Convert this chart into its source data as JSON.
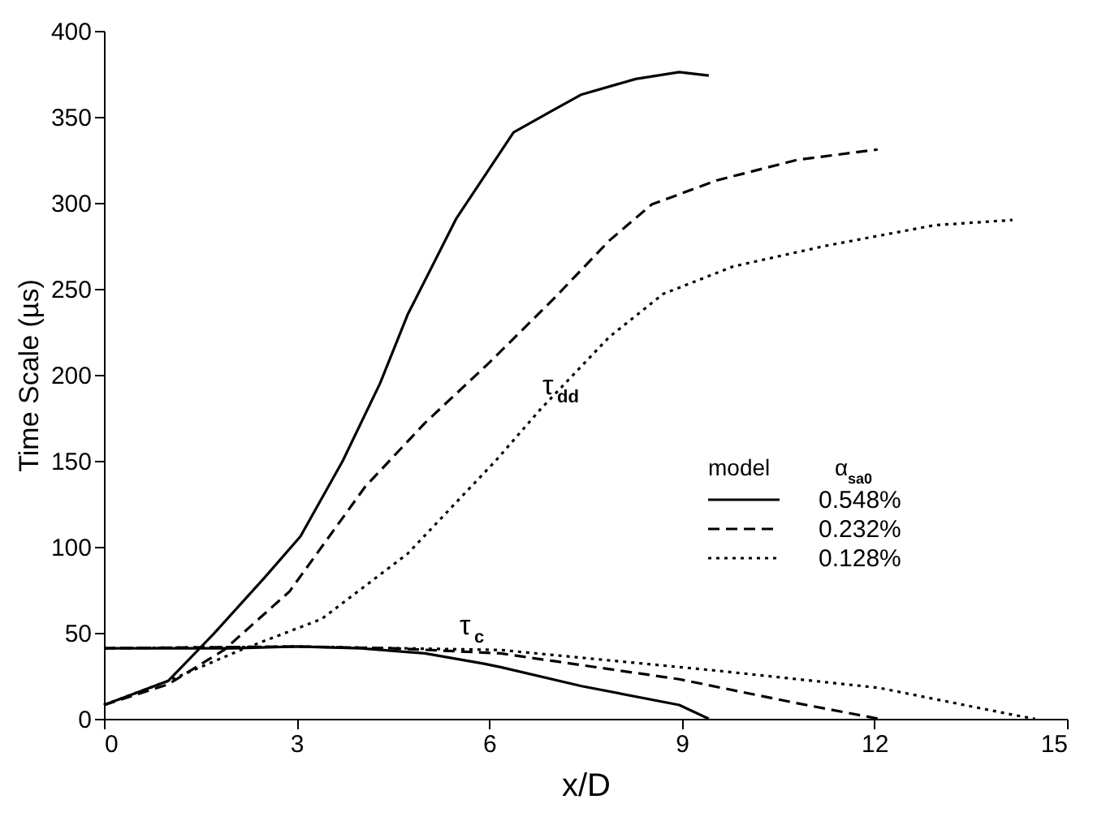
{
  "chart_data": {
    "type": "line",
    "xlabel": "x/D",
    "ylabel": "Time Scale (µs)",
    "xlim": [
      0,
      15
    ],
    "ylim": [
      0,
      400
    ],
    "xticks": [
      0,
      3,
      6,
      9,
      12,
      15
    ],
    "yticks": [
      0,
      50,
      100,
      150,
      200,
      250,
      300,
      350,
      400
    ],
    "grid": false,
    "legend": "right",
    "legend_title": "model",
    "marker": "none",
    "series": [
      {
        "name": "0.548%",
        "color": "#000000",
        "line_style": "solid",
        "x": [
          0,
          1,
          1.7,
          2.5,
          3.06,
          3.72,
          4.3,
          4.73,
          5.49,
          6.38,
          7.0,
          7.44,
          8.28,
          8.96,
          9.42
        ],
        "values": [
          8,
          22,
          49,
          82,
          106,
          150,
          195,
          235,
          291,
          341,
          354,
          363,
          372,
          376,
          374
        ]
      },
      {
        "name": "0.232%",
        "color": "#000000",
        "line_style": "dashed",
        "x": [
          0,
          1,
          1.87,
          2.89,
          4.07,
          5.0,
          6.0,
          7.0,
          7.87,
          8.53,
          9.54,
          10.8,
          12.05
        ],
        "values": [
          8,
          20,
          40,
          74,
          135,
          172,
          207,
          244,
          278,
          299,
          313,
          325,
          331
        ]
      },
      {
        "name": "0.128%",
        "color": "#000000",
        "line_style": "dotted",
        "x": [
          0,
          1,
          2.13,
          3.39,
          4.73,
          6.1,
          6.8,
          7.87,
          8.71,
          9.8,
          11.24,
          12.94,
          14.15
        ],
        "values": [
          8,
          22,
          40,
          58,
          96,
          150,
          180,
          222,
          247,
          263,
          275,
          287,
          290
        ]
      },
      {
        "color": "#000000",
        "line_style": "solid",
        "x": [
          0,
          2,
          3,
          4,
          5,
          5.92,
          6.18,
          7.44,
          8.96,
          9.42
        ],
        "values": [
          41,
          41,
          42,
          41,
          38,
          32,
          30,
          19,
          8,
          0
        ]
      },
      {
        "color": "#000000",
        "line_style": "dashed",
        "x": [
          0,
          3,
          4.5,
          6.18,
          8.96,
          10.8,
          12.07
        ],
        "values": [
          41,
          42,
          41,
          38,
          23,
          9,
          0
        ]
      },
      {
        "color": "#000000",
        "line_style": "dotted",
        "x": [
          0,
          3,
          6.18,
          9.54,
          12.07,
          14.2,
          14.5
        ],
        "values": [
          41,
          42,
          40,
          28,
          18,
          2,
          0
        ]
      }
    ],
    "annotations": [
      "τ$_{dd}$",
      "τ$_{c}$",
      "α$_{sa0}$"
    ]
  }
}
